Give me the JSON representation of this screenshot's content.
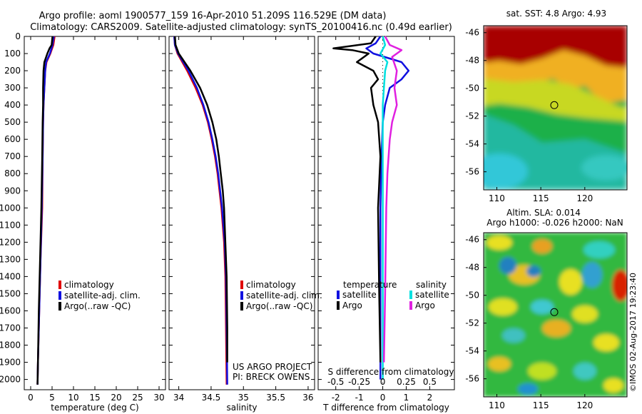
{
  "header": {
    "line1": "Argo profile: aoml 1900577_159 16-Apr-2010 51.209S 116.529E (DM data)",
    "line2": "Climatology: CARS2009. Satellite-adjusted climatology: synTS_20100416.nc (0.49d earlier)"
  },
  "credits": {
    "project": "US ARGO PROJECT",
    "pi": "PI: BRECK OWENS",
    "stamp": "©IMOS 02-Aug-2017 19:23:40"
  },
  "colors": {
    "climatology": "#e00000",
    "satellite": "#1010e0",
    "argo": "#000000",
    "sat_salinity": "#00e0e0",
    "argo_salinity": "#e020e0"
  },
  "chart_data": [
    {
      "type": "line",
      "xlabel": "temperature (deg C)",
      "ylabel": "",
      "xlim": [
        -1.5,
        31.5
      ],
      "ylim": [
        2060,
        0
      ],
      "xticks": [
        0,
        5,
        10,
        15,
        20,
        25,
        30
      ],
      "yticks": [
        0,
        100,
        200,
        300,
        400,
        500,
        600,
        700,
        800,
        900,
        1000,
        1100,
        1200,
        1300,
        1400,
        1500,
        1600,
        1700,
        1800,
        1900,
        2000
      ],
      "legend": [
        "climatology",
        "satellite-adj. clim.",
        "Argo(..raw -QC)"
      ],
      "legend_placement": "lower-center",
      "series": [
        {
          "name": "climatology",
          "color": "#e00000",
          "depth": [
            0,
            50,
            100,
            150,
            200,
            300,
            400,
            500,
            700,
            1000,
            1300,
            1600,
            1900,
            2030
          ],
          "values": [
            5.6,
            5.3,
            4.6,
            3.7,
            3.4,
            3.2,
            3.0,
            2.9,
            2.8,
            2.7,
            2.3,
            2.0,
            1.7,
            1.6
          ]
        },
        {
          "name": "satellite-adj. clim.",
          "color": "#1010e0",
          "depth": [
            0,
            50,
            100,
            150,
            200,
            300,
            400,
            500,
            700,
            1000,
            1300,
            1600,
            1900,
            2030
          ],
          "values": [
            5.4,
            5.1,
            4.5,
            3.6,
            3.4,
            3.2,
            3.0,
            2.9,
            2.8,
            2.6,
            2.3,
            2.0,
            1.7,
            1.6
          ]
        },
        {
          "name": "Argo(..raw -QC)",
          "color": "#000000",
          "depth": [
            0,
            50,
            70,
            100,
            150,
            200,
            300,
            400,
            500,
            700,
            1000,
            1300,
            1600,
            1900,
            2030
          ],
          "values": [
            5.1,
            4.9,
            4.4,
            3.9,
            3.2,
            3.0,
            2.9,
            2.9,
            2.8,
            2.7,
            2.5,
            2.2,
            1.9,
            1.7,
            1.6
          ]
        }
      ]
    },
    {
      "type": "line",
      "xlabel": "salinity",
      "ylabel": "",
      "xlim": [
        33.85,
        36.1
      ],
      "ylim": [
        2060,
        0
      ],
      "xticks": [
        34,
        34.5,
        35,
        35.5,
        36
      ],
      "legend": [
        "climatology",
        "satellite-adj. clim.",
        "Argo(..raw -QC)"
      ],
      "legend_placement": "lower-center",
      "series": [
        {
          "name": "climatology",
          "color": "#e00000",
          "depth": [
            0,
            50,
            100,
            200,
            300,
            400,
            500,
            600,
            700,
            800,
            900,
            1000,
            1200,
            1400,
            1700,
            2030
          ],
          "values": [
            33.93,
            33.94,
            33.98,
            34.13,
            34.26,
            34.37,
            34.45,
            34.51,
            34.56,
            34.6,
            34.63,
            34.66,
            34.7,
            34.72,
            34.73,
            34.74
          ]
        },
        {
          "name": "satellite-adj. clim.",
          "color": "#1010e0",
          "depth": [
            0,
            50,
            100,
            200,
            300,
            400,
            500,
            600,
            700,
            800,
            900,
            1000,
            1200,
            1400,
            1700,
            2030
          ],
          "values": [
            33.93,
            33.94,
            33.99,
            34.15,
            34.28,
            34.38,
            34.46,
            34.52,
            34.57,
            34.61,
            34.64,
            34.67,
            34.71,
            34.73,
            34.74,
            34.75
          ]
        },
        {
          "name": "Argo(..raw -QC)",
          "color": "#000000",
          "depth": [
            0,
            50,
            100,
            200,
            300,
            400,
            500,
            600,
            700,
            800,
            900,
            1000,
            1200,
            1400,
            1700,
            1900
          ],
          "values": [
            33.94,
            33.95,
            34.0,
            34.18,
            34.33,
            34.44,
            34.52,
            34.58,
            34.62,
            34.65,
            34.68,
            34.7,
            34.72,
            34.74,
            34.75,
            34.75
          ]
        }
      ]
    },
    {
      "type": "line",
      "xlabel": "T difference from climatology",
      "top_label": "S difference from climatology",
      "xlim": [
        -2.75,
        3.05
      ],
      "ylim": [
        2060,
        0
      ],
      "xticks": [
        -2,
        -1,
        0,
        1,
        2
      ],
      "s_ticks": [
        {
          "label": "-0.5",
          "pos": -2
        },
        {
          "label": "-0.25",
          "pos": -1
        },
        {
          "label": "0",
          "pos": 0
        },
        {
          "label": "0.25",
          "pos": 1
        },
        {
          "label": "0.5",
          "pos": 2
        }
      ],
      "legend_titles": [
        "temperature",
        "salinity"
      ],
      "legend": [
        "satellite",
        "Argo",
        "satellite",
        "Argo"
      ],
      "legend_placement": "lower-center",
      "series": [
        {
          "name": "satellite",
          "quantity": "temperature",
          "color": "#1010e0",
          "depth": [
            0,
            40,
            70,
            100,
            150,
            200,
            250,
            300,
            400,
            500,
            700,
            1000,
            1500,
            2000
          ],
          "values": [
            -0.1,
            -0.3,
            -0.7,
            -0.4,
            0.8,
            1.1,
            0.8,
            0.3,
            0.1,
            0.0,
            -0.05,
            -0.1,
            -0.1,
            -0.1
          ]
        },
        {
          "name": "Argo",
          "quantity": "temperature",
          "color": "#000000",
          "depth": [
            0,
            40,
            70,
            80,
            100,
            150,
            200,
            250,
            300,
            400,
            500,
            700,
            1000,
            1500,
            1900
          ],
          "values": [
            -0.3,
            -0.5,
            -2.1,
            -1.3,
            -0.6,
            -1.1,
            -0.4,
            -0.2,
            -0.5,
            -0.4,
            -0.2,
            -0.1,
            -0.2,
            -0.15,
            -0.1
          ]
        },
        {
          "name": "satellite",
          "quantity": "salinity",
          "color": "#00e0e0",
          "depth": [
            0,
            50,
            100,
            150,
            200,
            300,
            400,
            500,
            700,
            1000,
            1500,
            2000
          ],
          "values": [
            0.0,
            0.1,
            -0.1,
            0.2,
            0.1,
            0.05,
            0.0,
            0.0,
            0.0,
            0.0,
            0.0,
            0.0
          ]
        },
        {
          "name": "Argo",
          "quantity": "salinity",
          "color": "#e020e0",
          "depth": [
            0,
            50,
            80,
            120,
            200,
            300,
            400,
            500,
            600,
            800,
            1000,
            1500,
            1900
          ],
          "values": [
            0.1,
            0.3,
            0.8,
            0.4,
            0.6,
            0.5,
            0.6,
            0.4,
            0.3,
            0.2,
            0.15,
            0.1,
            0.05
          ]
        }
      ]
    },
    {
      "type": "heatmap",
      "title": "sat. SST: 4.8  Argo: 4.93",
      "xlim": [
        108.5,
        124.8
      ],
      "ylim": [
        -57.3,
        -45.5
      ],
      "xticks": [
        110,
        115,
        120
      ],
      "yticks": [
        -46,
        -48,
        -50,
        -52,
        -54,
        -56
      ],
      "marker": {
        "lon": 116.529,
        "lat": -51.209
      },
      "colormap": "jet"
    },
    {
      "type": "heatmap",
      "title": "Altim. SLA: 0.014",
      "subtitle": "Argo h1000: -0.026  h2000: NaN",
      "xlim": [
        108.5,
        124.8
      ],
      "ylim": [
        -57.3,
        -45.5
      ],
      "xticks": [
        110,
        115,
        120
      ],
      "yticks": [
        -46,
        -48,
        -50,
        -52,
        -54,
        -56
      ],
      "marker": {
        "lon": 116.529,
        "lat": -51.209
      },
      "colormap": "jet"
    }
  ]
}
